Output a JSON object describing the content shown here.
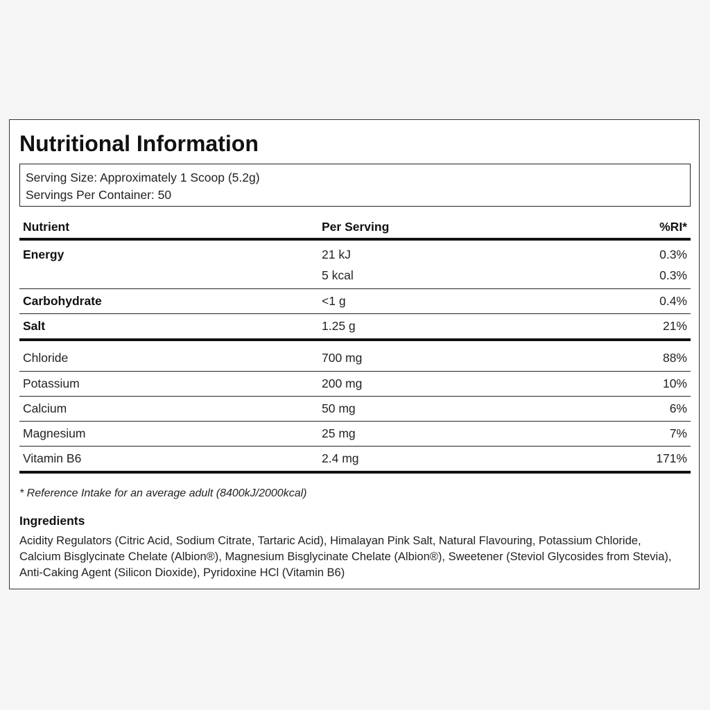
{
  "title": "Nutritional Information",
  "serving": {
    "size": "Serving Size: Approximately 1 Scoop (5.2g)",
    "per_container": "Servings Per Container: 50"
  },
  "table": {
    "headers": {
      "nutrient": "Nutrient",
      "per_serving": "Per Serving",
      "ri": "%RI*"
    },
    "energy": {
      "name": "Energy",
      "kj": "21 kJ",
      "kj_ri": "0.3%",
      "kcal": "5 kcal",
      "kcal_ri": "0.3%"
    },
    "carbohydrate": {
      "name": "Carbohydrate",
      "value": "<1 g",
      "ri": "0.4%"
    },
    "salt": {
      "name": "Salt",
      "value": "1.25 g",
      "ri": "21%"
    },
    "minerals": [
      {
        "name": "Chloride",
        "value": "700 mg",
        "ri": "88%"
      },
      {
        "name": "Potassium",
        "value": "200 mg",
        "ri": "10%"
      },
      {
        "name": "Calcium",
        "value": "50 mg",
        "ri": "6%"
      },
      {
        "name": "Magnesium",
        "value": "25 mg",
        "ri": "7%"
      },
      {
        "name": "Vitamin B6",
        "value": "2.4 mg",
        "ri": "171%"
      }
    ]
  },
  "footnote": "* Reference Intake for an average adult (8400kJ/2000kcal)",
  "ingredients": {
    "title": "Ingredients",
    "text": "Acidity Regulators (Citric Acid, Sodium Citrate, Tartaric Acid), Himalayan Pink Salt, Natural Flavouring, Potassium Chloride, Calcium Bisglycinate Chelate (Albion®), Magnesium Bisglycinate Chelate (Albion®), Sweetener (Steviol Glycosides from Stevia), Anti-Caking Agent (Silicon Dioxide), Pyridoxine HCl (Vitamin B6)"
  }
}
